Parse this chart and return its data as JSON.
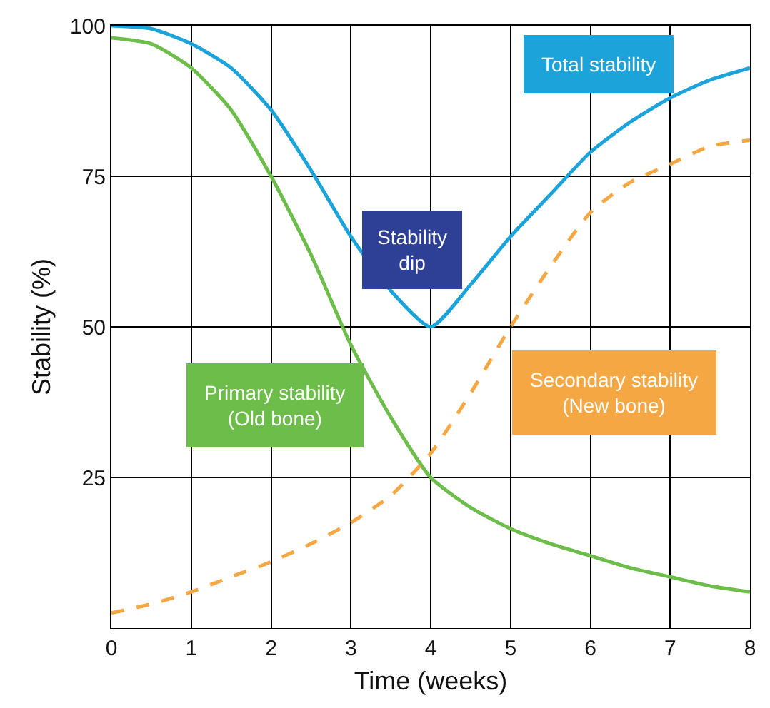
{
  "chart_data": {
    "type": "line",
    "xlabel": "Time (weeks)",
    "ylabel": "Stability (%)",
    "xlim": [
      0,
      8
    ],
    "ylim": [
      0,
      100
    ],
    "xticks": [
      0,
      1,
      2,
      3,
      4,
      5,
      6,
      7,
      8
    ],
    "yticks": [
      25,
      50,
      75,
      100
    ],
    "grid": true,
    "legend": false,
    "marker": "none",
    "x": [
      0,
      0.5,
      1,
      1.5,
      2,
      2.5,
      3,
      3.5,
      4,
      4.5,
      5,
      5.5,
      6,
      6.5,
      7,
      7.5,
      8
    ],
    "series": [
      {
        "name": "Total stability",
        "color": "#1ca3da",
        "line_style": "solid",
        "values": [
          100,
          99.5,
          97,
          93,
          86,
          76,
          65,
          56,
          50,
          57,
          65,
          72,
          79,
          84,
          88,
          91,
          93
        ]
      },
      {
        "name": "Primary stability\n(Old bone)",
        "color": "#6dbd4a",
        "line_style": "solid",
        "values": [
          98,
          97,
          93,
          86,
          75,
          62,
          47,
          35,
          25,
          20,
          16.5,
          14,
          12,
          10,
          8.5,
          7,
          6
        ]
      },
      {
        "name": "Secondary stability\n(New bone)",
        "color": "#f4a742",
        "line_style": "dashed",
        "values": [
          2.5,
          4,
          6,
          8.5,
          11,
          14,
          17.5,
          22,
          29,
          39,
          50,
          60,
          69,
          74,
          77,
          80,
          81
        ]
      }
    ],
    "annotations": [
      "Stability dip"
    ]
  }
}
